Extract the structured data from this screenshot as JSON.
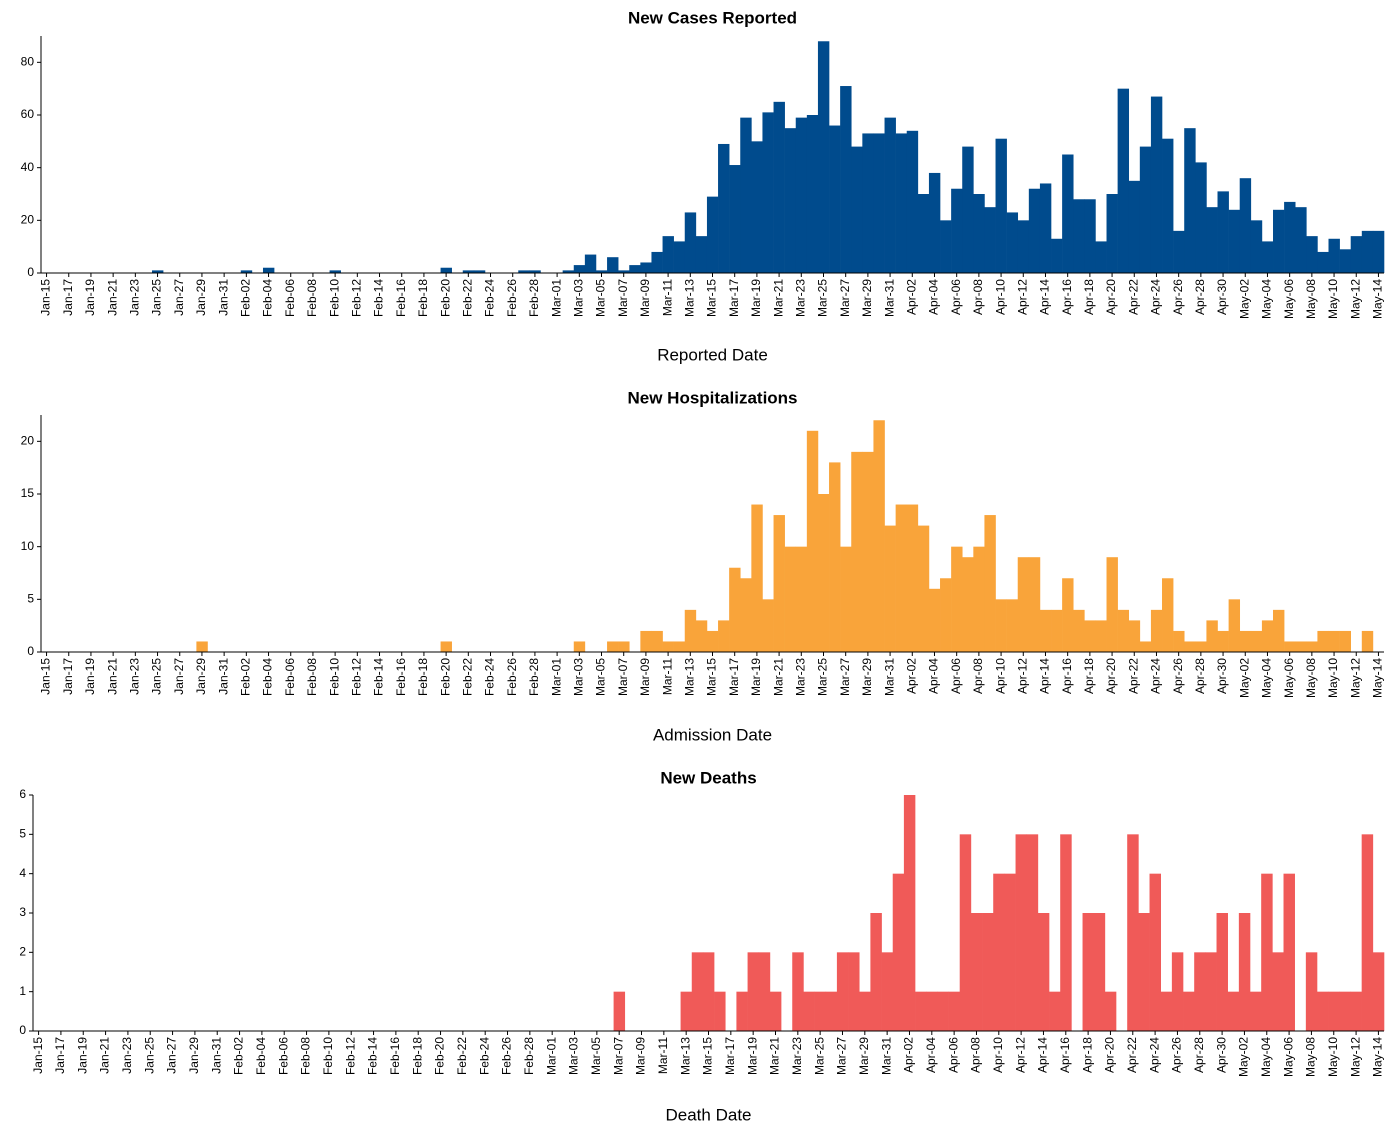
{
  "chart_data": [
    {
      "type": "bar",
      "title": "New Cases Reported",
      "x_label": "Reported Date",
      "color": "#004b8d",
      "categories": [
        "Jan-15",
        null,
        "Jan-17",
        null,
        "Jan-19",
        null,
        "Jan-21",
        null,
        "Jan-23",
        null,
        "Jan-25",
        null,
        "Jan-27",
        null,
        "Jan-29",
        null,
        "Jan-31",
        null,
        "Feb-02",
        null,
        "Feb-04",
        null,
        "Feb-06",
        null,
        "Feb-08",
        null,
        "Feb-10",
        null,
        "Feb-12",
        null,
        "Feb-14",
        null,
        "Feb-16",
        null,
        "Feb-18",
        null,
        "Feb-20",
        null,
        "Feb-22",
        null,
        "Feb-24",
        null,
        "Feb-26",
        null,
        "Feb-28",
        null,
        "Mar-01",
        null,
        "Mar-03",
        null,
        "Mar-05",
        null,
        "Mar-07",
        null,
        "Mar-09",
        null,
        "Mar-11",
        null,
        "Mar-13",
        null,
        "Mar-15",
        null,
        "Mar-17",
        null,
        "Mar-19",
        null,
        "Mar-21",
        null,
        "Mar-23",
        null,
        "Mar-25",
        null,
        "Mar-27",
        null,
        "Mar-29",
        null,
        "Mar-31",
        null,
        "Apr-02",
        null,
        "Apr-04",
        null,
        "Apr-06",
        null,
        "Apr-08",
        null,
        "Apr-10",
        null,
        "Apr-12",
        null,
        "Apr-14",
        null,
        "Apr-16",
        null,
        "Apr-18",
        null,
        "Apr-20",
        null,
        "Apr-22",
        null,
        "Apr-24",
        null,
        "Apr-26",
        null,
        "Apr-28",
        null,
        "Apr-30",
        null,
        "May-02",
        null,
        "May-04",
        null,
        "May-06",
        null,
        "May-08",
        null,
        "May-10",
        null,
        "May-12",
        null,
        "May-14"
      ],
      "values": [
        0,
        0,
        0,
        0,
        0,
        0,
        0,
        0,
        0,
        0,
        1,
        0,
        0,
        0,
        0,
        0,
        0,
        0,
        1,
        0,
        2,
        0,
        0,
        0,
        0,
        0,
        1,
        0,
        0,
        0,
        0,
        0,
        0,
        0,
        0,
        0,
        2,
        0,
        1,
        1,
        0,
        0,
        0,
        1,
        1,
        0,
        0,
        1,
        3,
        7,
        1,
        6,
        1,
        3,
        4,
        8,
        14,
        12,
        23,
        14,
        29,
        49,
        41,
        59,
        50,
        61,
        65,
        55,
        59,
        60,
        88,
        56,
        71,
        48,
        53,
        53,
        59,
        53,
        54,
        30,
        38,
        20,
        32,
        48,
        30,
        25,
        51,
        23,
        20,
        32,
        34,
        13,
        45,
        28,
        28,
        12,
        30,
        70,
        35,
        48,
        67,
        51,
        16,
        55,
        42,
        25,
        31,
        24,
        36,
        20,
        12,
        24,
        27,
        25,
        14,
        8,
        13,
        9,
        14,
        16,
        16
      ],
      "ylim": [
        0,
        90
      ],
      "yticks": [
        0,
        20,
        40,
        60,
        80
      ]
    },
    {
      "type": "bar",
      "title": "New Hospitalizations",
      "x_label": "Admission Date",
      "color": "#f9a43a",
      "categories": [
        "Jan-15",
        null,
        "Jan-17",
        null,
        "Jan-19",
        null,
        "Jan-21",
        null,
        "Jan-23",
        null,
        "Jan-25",
        null,
        "Jan-27",
        null,
        "Jan-29",
        null,
        "Jan-31",
        null,
        "Feb-02",
        null,
        "Feb-04",
        null,
        "Feb-06",
        null,
        "Feb-08",
        null,
        "Feb-10",
        null,
        "Feb-12",
        null,
        "Feb-14",
        null,
        "Feb-16",
        null,
        "Feb-18",
        null,
        "Feb-20",
        null,
        "Feb-22",
        null,
        "Feb-24",
        null,
        "Feb-26",
        null,
        "Feb-28",
        null,
        "Mar-01",
        null,
        "Mar-03",
        null,
        "Mar-05",
        null,
        "Mar-07",
        null,
        "Mar-09",
        null,
        "Mar-11",
        null,
        "Mar-13",
        null,
        "Mar-15",
        null,
        "Mar-17",
        null,
        "Mar-19",
        null,
        "Mar-21",
        null,
        "Mar-23",
        null,
        "Mar-25",
        null,
        "Mar-27",
        null,
        "Mar-29",
        null,
        "Mar-31",
        null,
        "Apr-02",
        null,
        "Apr-04",
        null,
        "Apr-06",
        null,
        "Apr-08",
        null,
        "Apr-10",
        null,
        "Apr-12",
        null,
        "Apr-14",
        null,
        "Apr-16",
        null,
        "Apr-18",
        null,
        "Apr-20",
        null,
        "Apr-22",
        null,
        "Apr-24",
        null,
        "Apr-26",
        null,
        "Apr-28",
        null,
        "Apr-30",
        null,
        "May-02",
        null,
        "May-04",
        null,
        "May-06",
        null,
        "May-08",
        null,
        "May-10",
        null,
        "May-12",
        null,
        "May-14"
      ],
      "values": [
        0,
        0,
        0,
        0,
        0,
        0,
        0,
        0,
        0,
        0,
        0,
        0,
        0,
        0,
        1,
        0,
        0,
        0,
        0,
        0,
        0,
        0,
        0,
        0,
        0,
        0,
        0,
        0,
        0,
        0,
        0,
        0,
        0,
        0,
        0,
        0,
        1,
        0,
        0,
        0,
        0,
        0,
        0,
        0,
        0,
        0,
        0,
        0,
        1,
        0,
        0,
        1,
        1,
        0,
        2,
        2,
        1,
        1,
        4,
        3,
        2,
        3,
        8,
        7,
        14,
        5,
        13,
        10,
        10,
        21,
        15,
        18,
        10,
        19,
        19,
        22,
        12,
        14,
        14,
        12,
        6,
        7,
        10,
        9,
        10,
        13,
        5,
        5,
        9,
        9,
        4,
        4,
        7,
        4,
        3,
        3,
        9,
        4,
        3,
        1,
        4,
        7,
        2,
        1,
        1,
        3,
        2,
        5,
        2,
        2,
        3,
        4,
        1,
        1,
        1,
        2,
        2,
        2,
        0,
        2,
        0
      ],
      "ylim": [
        0,
        22.5
      ],
      "yticks": [
        0,
        5,
        10,
        15,
        20
      ]
    },
    {
      "type": "bar",
      "title": "New Deaths",
      "x_label": "Death Date",
      "color": "#f05a58",
      "categories": [
        "Jan-15",
        null,
        "Jan-17",
        null,
        "Jan-19",
        null,
        "Jan-21",
        null,
        "Jan-23",
        null,
        "Jan-25",
        null,
        "Jan-27",
        null,
        "Jan-29",
        null,
        "Jan-31",
        null,
        "Feb-02",
        null,
        "Feb-04",
        null,
        "Feb-06",
        null,
        "Feb-08",
        null,
        "Feb-10",
        null,
        "Feb-12",
        null,
        "Feb-14",
        null,
        "Feb-16",
        null,
        "Feb-18",
        null,
        "Feb-20",
        null,
        "Feb-22",
        null,
        "Feb-24",
        null,
        "Feb-26",
        null,
        "Feb-28",
        null,
        "Mar-01",
        null,
        "Mar-03",
        null,
        "Mar-05",
        null,
        "Mar-07",
        null,
        "Mar-09",
        null,
        "Mar-11",
        null,
        "Mar-13",
        null,
        "Mar-15",
        null,
        "Mar-17",
        null,
        "Mar-19",
        null,
        "Mar-21",
        null,
        "Mar-23",
        null,
        "Mar-25",
        null,
        "Mar-27",
        null,
        "Mar-29",
        null,
        "Mar-31",
        null,
        "Apr-02",
        null,
        "Apr-04",
        null,
        "Apr-06",
        null,
        "Apr-08",
        null,
        "Apr-10",
        null,
        "Apr-12",
        null,
        "Apr-14",
        null,
        "Apr-16",
        null,
        "Apr-18",
        null,
        "Apr-20",
        null,
        "Apr-22",
        null,
        "Apr-24",
        null,
        "Apr-26",
        null,
        "Apr-28",
        null,
        "Apr-30",
        null,
        "May-02",
        null,
        "May-04",
        null,
        "May-06",
        null,
        "May-08",
        null,
        "May-10",
        null,
        "May-12",
        null,
        "May-14"
      ],
      "values": [
        0,
        0,
        0,
        0,
        0,
        0,
        0,
        0,
        0,
        0,
        0,
        0,
        0,
        0,
        0,
        0,
        0,
        0,
        0,
        0,
        0,
        0,
        0,
        0,
        0,
        0,
        0,
        0,
        0,
        0,
        0,
        0,
        0,
        0,
        0,
        0,
        0,
        0,
        0,
        0,
        0,
        0,
        0,
        0,
        0,
        0,
        0,
        0,
        0,
        0,
        0,
        0,
        1,
        0,
        0,
        0,
        0,
        0,
        1,
        2,
        2,
        1,
        0,
        1,
        2,
        2,
        1,
        0,
        2,
        1,
        1,
        1,
        2,
        2,
        1,
        3,
        2,
        4,
        6,
        1,
        1,
        1,
        1,
        5,
        3,
        3,
        4,
        4,
        5,
        5,
        3,
        1,
        5,
        0,
        3,
        3,
        1,
        0,
        5,
        3,
        4,
        1,
        2,
        1,
        2,
        2,
        3,
        1,
        3,
        1,
        4,
        2,
        4,
        0,
        2,
        1,
        1,
        1,
        1,
        5,
        2
      ],
      "ylim": [
        0,
        6
      ],
      "yticks": [
        0,
        1,
        2,
        3,
        4,
        5,
        6
      ]
    }
  ]
}
